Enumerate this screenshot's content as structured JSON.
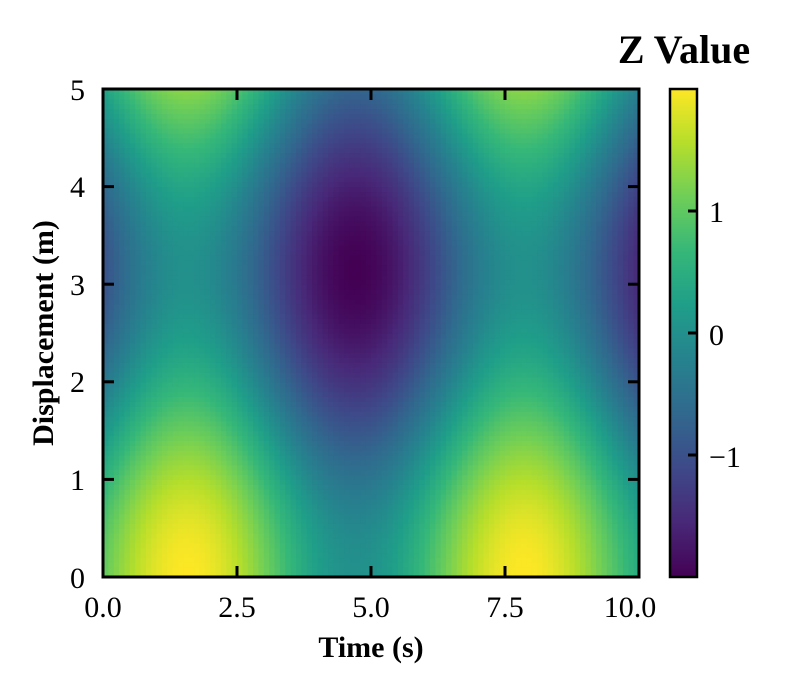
{
  "chart_data": {
    "type": "heatmap",
    "title": "",
    "xlabel": "Time (s)",
    "ylabel": "Displacement (m)",
    "xlim": [
      0,
      10
    ],
    "ylim": [
      0,
      5
    ],
    "x_ticks": [
      "0.0",
      "2.5",
      "5.0",
      "7.5",
      "10.0"
    ],
    "y_ticks": [
      "0",
      "1",
      "2",
      "3",
      "4",
      "5"
    ],
    "function": "z = sin(x) + cos(y)",
    "z_range": [
      -2,
      2
    ],
    "colormap": "viridis",
    "grid": false,
    "colorbar": {
      "title": "Z Value",
      "ticks": [
        "1",
        "0",
        "−1"
      ]
    },
    "colors": {
      "viridis_stops": [
        "#440154",
        "#482878",
        "#3e4989",
        "#31688e",
        "#26828e",
        "#1f9e89",
        "#35b779",
        "#6ece58",
        "#b5de2b",
        "#fde725"
      ]
    }
  }
}
